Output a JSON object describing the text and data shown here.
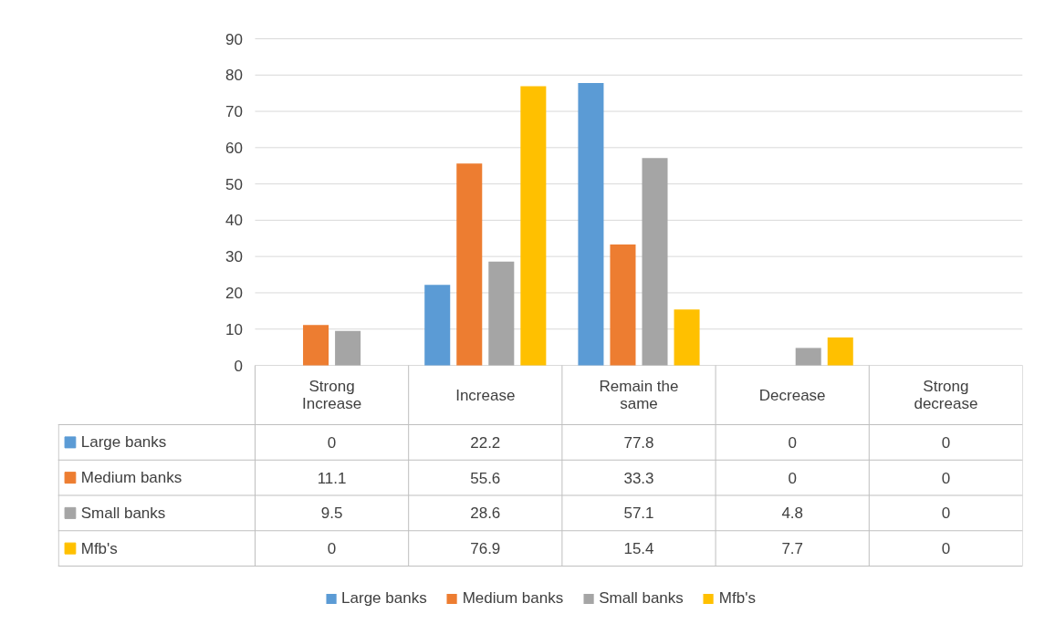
{
  "chart_data": {
    "type": "bar",
    "categories": [
      "Strong Increase",
      "Increase",
      "Remain the same",
      "Decrease",
      "Strong decrease"
    ],
    "series": [
      {
        "name": "Large banks",
        "color": "#5b9bd5",
        "values": [
          0,
          22.2,
          77.8,
          0,
          0
        ]
      },
      {
        "name": "Medium banks",
        "color": "#ed7d31",
        "values": [
          11.1,
          55.6,
          33.3,
          0,
          0
        ]
      },
      {
        "name": "Small banks",
        "color": "#a5a5a5",
        "values": [
          9.5,
          28.6,
          57.1,
          4.8,
          0
        ]
      },
      {
        "name": "Mfb's",
        "color": "#ffc000",
        "values": [
          0,
          76.9,
          15.4,
          7.7,
          0
        ]
      }
    ],
    "ylim": [
      0,
      90
    ],
    "yticks": [
      0,
      10,
      20,
      30,
      40,
      50,
      60,
      70,
      80,
      90
    ],
    "grid": "y",
    "data_labels": true,
    "legend": "bottom"
  }
}
